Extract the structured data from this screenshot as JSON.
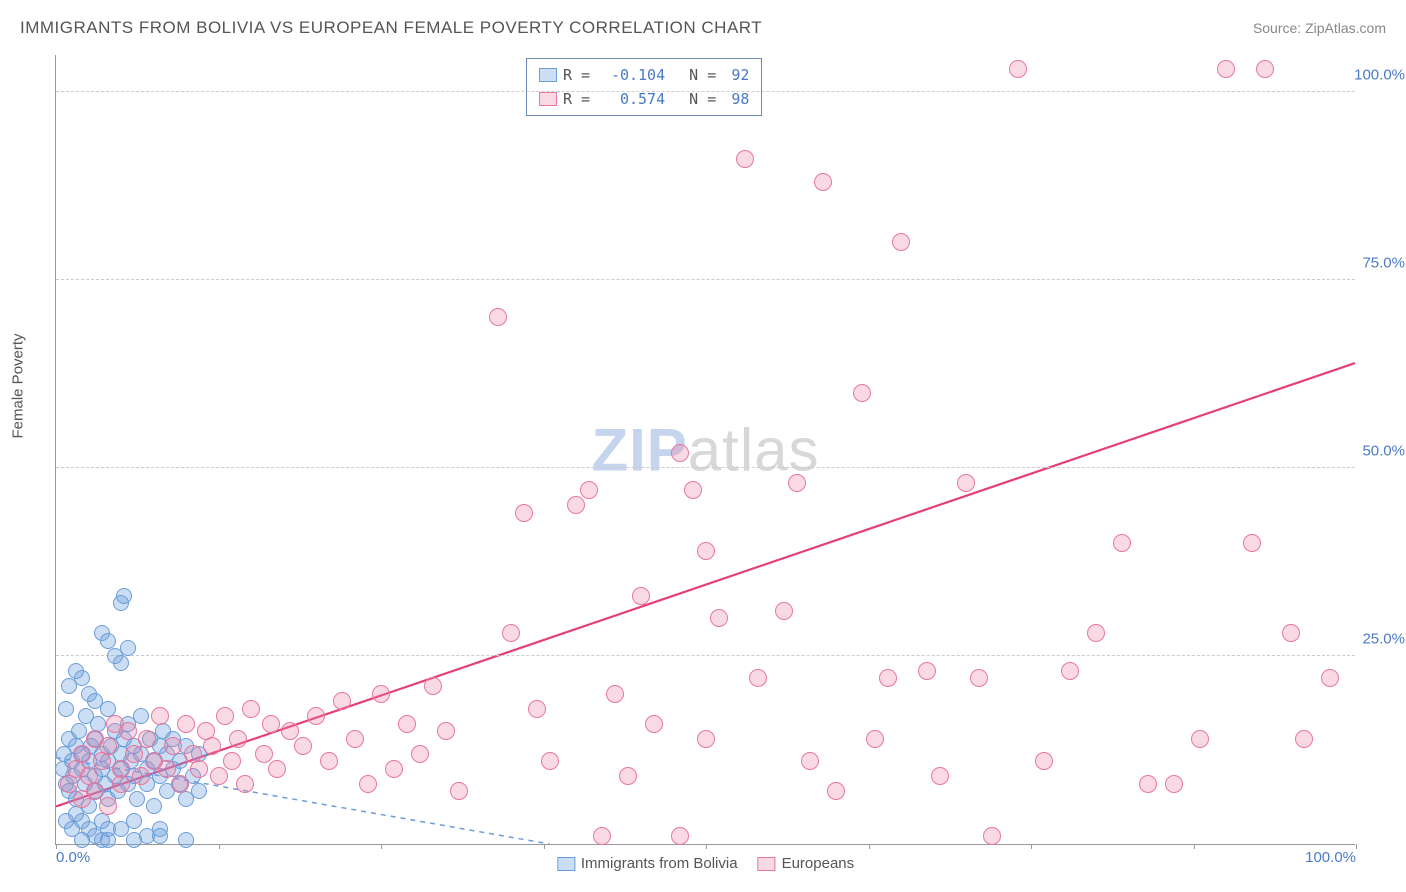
{
  "title": "IMMIGRANTS FROM BOLIVIA VS EUROPEAN FEMALE POVERTY CORRELATION CHART",
  "source": "Source: ZipAtlas.com",
  "watermark_a": "ZIP",
  "watermark_b": "atlas",
  "y_axis_label": "Female Poverty",
  "chart": {
    "type": "scatter",
    "xlim": [
      0,
      100
    ],
    "ylim": [
      0,
      105
    ],
    "x_ticks": [
      0,
      12.5,
      25,
      37.5,
      50,
      62.5,
      75,
      87.5,
      100
    ],
    "x_tick_labels": {
      "0": "0.0%",
      "100": "100.0%"
    },
    "y_gridlines": [
      25,
      50,
      75,
      100
    ],
    "y_tick_labels": {
      "25": "25.0%",
      "50": "50.0%",
      "75": "75.0%",
      "100": "100.0%"
    },
    "background_color": "#ffffff",
    "grid_color": "#cccccc",
    "axis_color": "#999999",
    "tick_label_color": "#4a7ac7",
    "series": [
      {
        "name": "Immigrants from Bolivia",
        "fill": "rgba(110,160,220,0.35)",
        "stroke": "#6b9dd8",
        "marker_size": 16,
        "R": "-0.104",
        "N": "92",
        "trend": {
          "x1": 0,
          "y1": 11.5,
          "x2": 38,
          "y2": 0,
          "color": "#6b9dd8",
          "dash": "5,5",
          "width": 1.5
        },
        "points": [
          [
            0.5,
            10
          ],
          [
            0.6,
            12
          ],
          [
            0.8,
            8
          ],
          [
            1,
            14
          ],
          [
            1,
            7
          ],
          [
            1.2,
            11
          ],
          [
            1.3,
            9
          ],
          [
            1.5,
            13
          ],
          [
            1.5,
            6
          ],
          [
            1.8,
            15
          ],
          [
            2,
            10
          ],
          [
            2,
            12
          ],
          [
            2.2,
            8
          ],
          [
            2.3,
            17
          ],
          [
            2.5,
            11
          ],
          [
            2.5,
            5
          ],
          [
            2.7,
            13
          ],
          [
            3,
            9
          ],
          [
            3,
            14
          ],
          [
            3,
            7
          ],
          [
            3.2,
            16
          ],
          [
            3.5,
            10
          ],
          [
            3.5,
            12
          ],
          [
            3.8,
            8
          ],
          [
            4,
            18
          ],
          [
            4,
            11
          ],
          [
            4,
            6
          ],
          [
            4.2,
            13
          ],
          [
            4.5,
            9
          ],
          [
            4.5,
            15
          ],
          [
            4.8,
            7
          ],
          [
            5,
            12
          ],
          [
            5,
            10
          ],
          [
            5.2,
            14
          ],
          [
            5.5,
            8
          ],
          [
            5.5,
            16
          ],
          [
            5.8,
            11
          ],
          [
            6,
            9
          ],
          [
            6,
            13
          ],
          [
            6.2,
            6
          ],
          [
            6.5,
            12
          ],
          [
            6.5,
            17
          ],
          [
            7,
            10
          ],
          [
            7,
            8
          ],
          [
            7.2,
            14
          ],
          [
            7.5,
            11
          ],
          [
            7.5,
            5
          ],
          [
            8,
            13
          ],
          [
            8,
            9
          ],
          [
            8.2,
            15
          ],
          [
            8.5,
            7
          ],
          [
            8.5,
            12
          ],
          [
            9,
            10
          ],
          [
            9,
            14
          ],
          [
            9.5,
            8
          ],
          [
            9.5,
            11
          ],
          [
            10,
            13
          ],
          [
            10,
            6
          ],
          [
            10.5,
            9
          ],
          [
            11,
            12
          ],
          [
            0.8,
            3
          ],
          [
            1.2,
            2
          ],
          [
            1.5,
            4
          ],
          [
            2,
            3
          ],
          [
            2.5,
            2
          ],
          [
            3,
            1
          ],
          [
            3.5,
            3
          ],
          [
            4,
            2
          ],
          [
            5,
            2
          ],
          [
            6,
            3
          ],
          [
            7,
            1
          ],
          [
            8,
            2
          ],
          [
            3.5,
            28
          ],
          [
            4,
            27
          ],
          [
            4.5,
            25
          ],
          [
            5,
            24
          ],
          [
            5,
            32
          ],
          [
            5.2,
            33
          ],
          [
            5.5,
            26
          ],
          [
            2,
            22
          ],
          [
            2.5,
            20
          ],
          [
            3,
            19
          ],
          [
            1.5,
            23
          ],
          [
            1,
            21
          ],
          [
            0.8,
            18
          ],
          [
            3.5,
            0.5
          ],
          [
            6,
            0.5
          ],
          [
            10,
            0.5
          ],
          [
            4,
            0.5
          ],
          [
            2,
            0.5
          ],
          [
            8,
            1
          ],
          [
            11,
            7
          ]
        ]
      },
      {
        "name": "Europeans",
        "fill": "rgba(235,130,165,0.30)",
        "stroke": "#e876a0",
        "marker_size": 18,
        "R": "0.574",
        "N": "98",
        "trend": {
          "x1": 0,
          "y1": 5,
          "x2": 100,
          "y2": 64,
          "color": "#e63e7a",
          "dash": "none",
          "width": 2.2
        },
        "points": [
          [
            1,
            8
          ],
          [
            1.5,
            10
          ],
          [
            2,
            12
          ],
          [
            2,
            6
          ],
          [
            2.5,
            9
          ],
          [
            3,
            14
          ],
          [
            3,
            7
          ],
          [
            3.5,
            11
          ],
          [
            4,
            13
          ],
          [
            4,
            5
          ],
          [
            4.5,
            16
          ],
          [
            5,
            10
          ],
          [
            5,
            8
          ],
          [
            5.5,
            15
          ],
          [
            6,
            12
          ],
          [
            6.5,
            9
          ],
          [
            7,
            14
          ],
          [
            7.5,
            11
          ],
          [
            8,
            17
          ],
          [
            8.5,
            10
          ],
          [
            9,
            13
          ],
          [
            9.5,
            8
          ],
          [
            10,
            16
          ],
          [
            10.5,
            12
          ],
          [
            11,
            10
          ],
          [
            11.5,
            15
          ],
          [
            12,
            13
          ],
          [
            12.5,
            9
          ],
          [
            13,
            17
          ],
          [
            13.5,
            11
          ],
          [
            14,
            14
          ],
          [
            14.5,
            8
          ],
          [
            15,
            18
          ],
          [
            16,
            12
          ],
          [
            16.5,
            16
          ],
          [
            17,
            10
          ],
          [
            18,
            15
          ],
          [
            19,
            13
          ],
          [
            20,
            17
          ],
          [
            21,
            11
          ],
          [
            22,
            19
          ],
          [
            23,
            14
          ],
          [
            24,
            8
          ],
          [
            25,
            20
          ],
          [
            26,
            10
          ],
          [
            27,
            16
          ],
          [
            28,
            12
          ],
          [
            29,
            21
          ],
          [
            30,
            15
          ],
          [
            31,
            7
          ],
          [
            34,
            70
          ],
          [
            36,
            44
          ],
          [
            37,
            18
          ],
          [
            38,
            11
          ],
          [
            40,
            45
          ],
          [
            41,
            47
          ],
          [
            42,
            1
          ],
          [
            43,
            20
          ],
          [
            44,
            9
          ],
          [
            45,
            33
          ],
          [
            46,
            16
          ],
          [
            48,
            52
          ],
          [
            49,
            47
          ],
          [
            50,
            14
          ],
          [
            50,
            39
          ],
          [
            51,
            30
          ],
          [
            53,
            91
          ],
          [
            54,
            22
          ],
          [
            56,
            31
          ],
          [
            57,
            48
          ],
          [
            58,
            11
          ],
          [
            59,
            88
          ],
          [
            60,
            7
          ],
          [
            62,
            60
          ],
          [
            63,
            14
          ],
          [
            64,
            22
          ],
          [
            65,
            80
          ],
          [
            67,
            23
          ],
          [
            68,
            9
          ],
          [
            70,
            48
          ],
          [
            71,
            22
          ],
          [
            72,
            1
          ],
          [
            74,
            103
          ],
          [
            76,
            11
          ],
          [
            78,
            23
          ],
          [
            80,
            28
          ],
          [
            82,
            40
          ],
          [
            84,
            8
          ],
          [
            86,
            8
          ],
          [
            88,
            14
          ],
          [
            90,
            103
          ],
          [
            92,
            40
          ],
          [
            93,
            103
          ],
          [
            95,
            28
          ],
          [
            96,
            14
          ],
          [
            98,
            22
          ],
          [
            48,
            1
          ],
          [
            35,
            28
          ]
        ]
      }
    ],
    "bottom_legend": [
      {
        "label": "Immigrants from Bolivia",
        "fill": "rgba(110,160,220,0.35)",
        "stroke": "#6b9dd8"
      },
      {
        "label": "Europeans",
        "fill": "rgba(235,130,165,0.30)",
        "stroke": "#e876a0"
      }
    ]
  }
}
